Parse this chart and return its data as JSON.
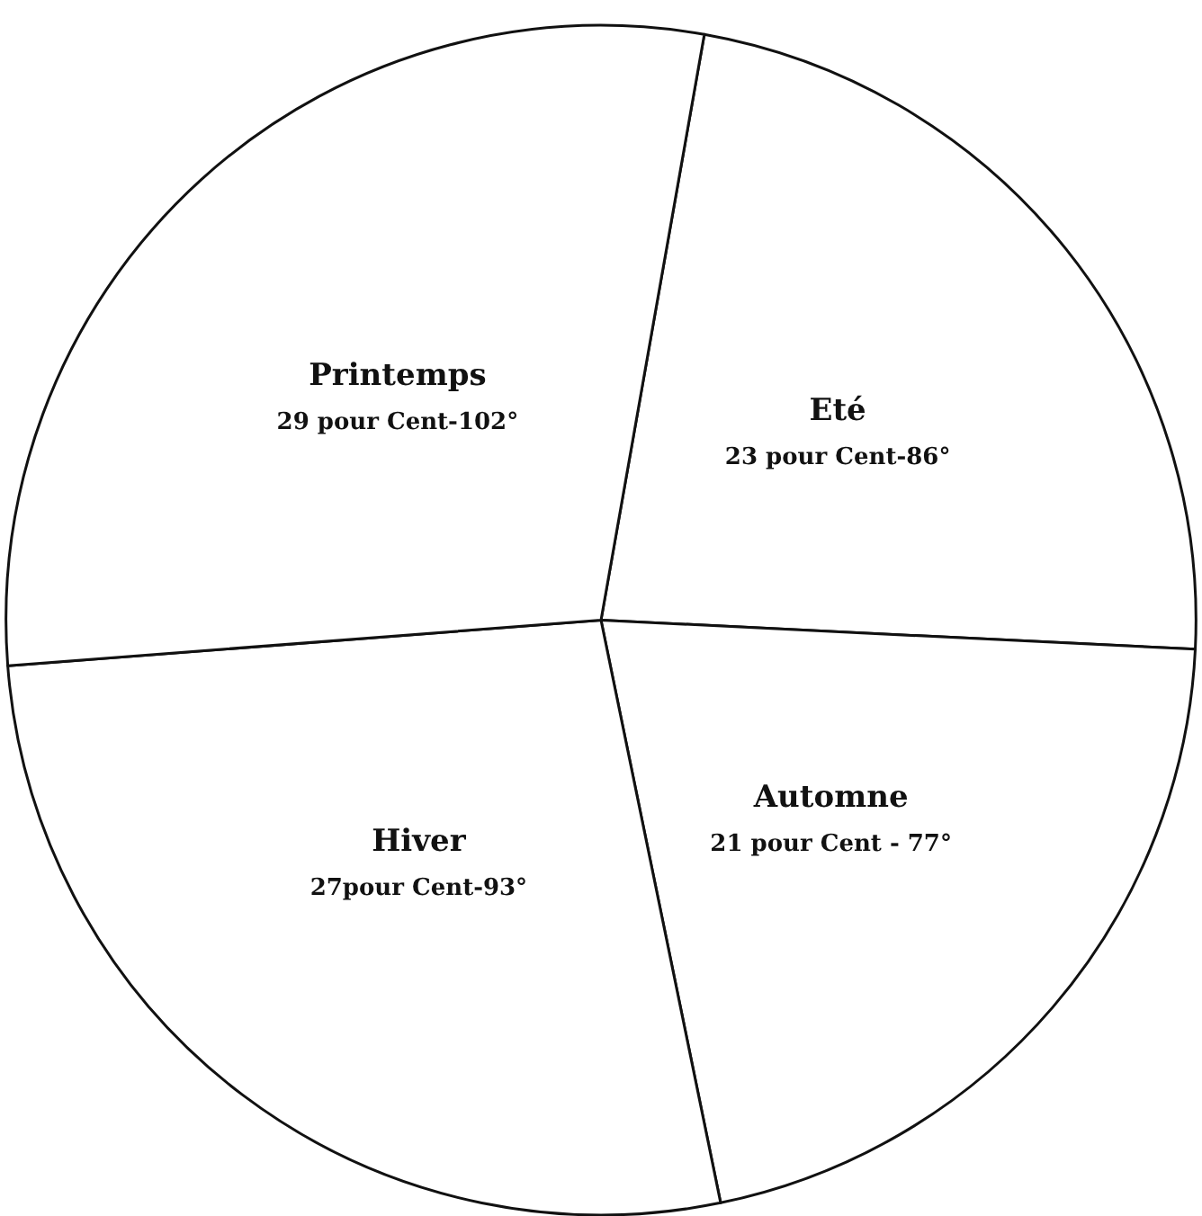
{
  "chart_data": {
    "type": "pie",
    "categories": [
      "Eté",
      "Automne",
      "Hiver",
      "Printemps"
    ],
    "values": [
      23,
      21,
      27,
      29
    ],
    "value_labels": [
      "23 pour Cent-86°",
      "21 pour Cent - 77°",
      "27pour Cent-93°",
      "29 pour Cent-102°"
    ],
    "colors": [
      "#ffffff",
      "#ffffff",
      "#ffffff",
      "#ffffff"
    ],
    "legend": false
  }
}
